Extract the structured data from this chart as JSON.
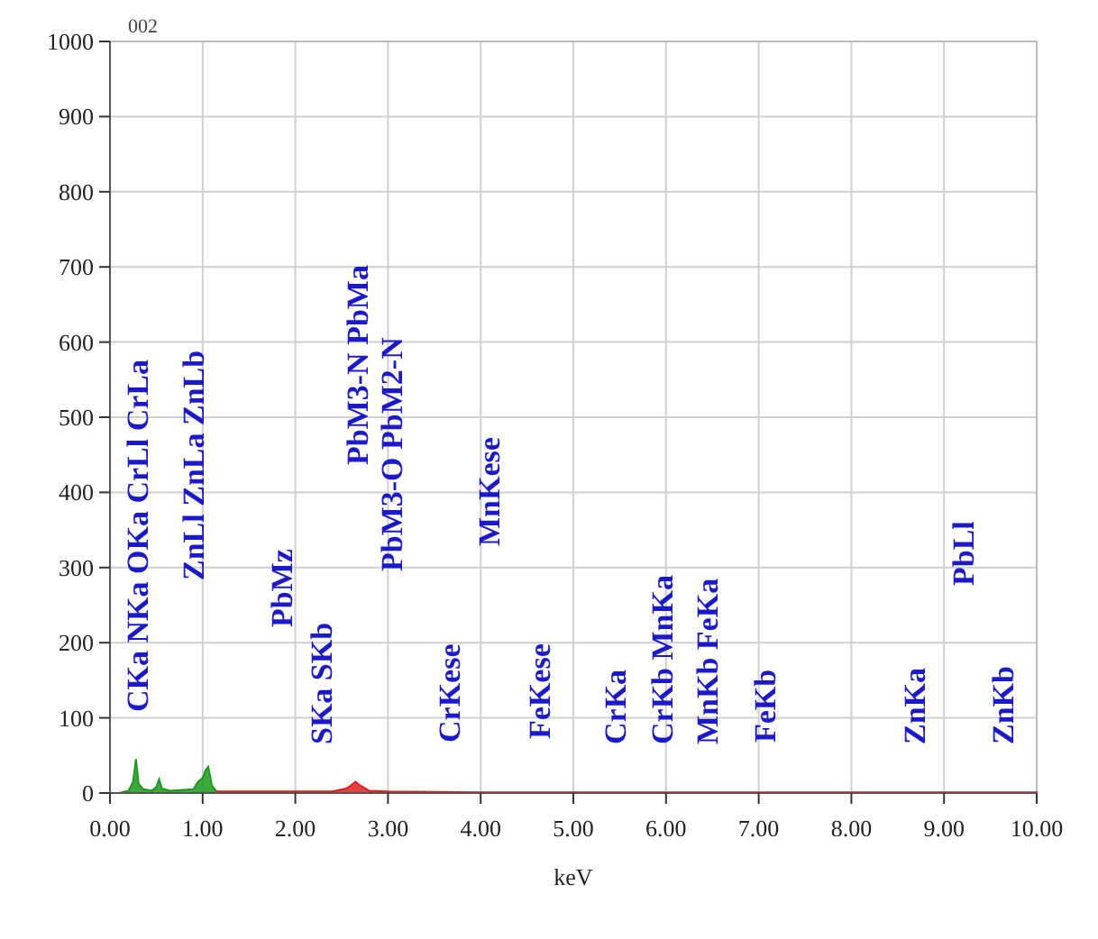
{
  "chart_data": {
    "type": "area",
    "xlabel": "keV",
    "xlim": [
      0,
      10
    ],
    "ylim": [
      0,
      1000
    ],
    "xticks": [
      {
        "value": 0,
        "label": "0.00"
      },
      {
        "value": 1,
        "label": "1.00"
      },
      {
        "value": 2,
        "label": "2.00"
      },
      {
        "value": 3,
        "label": "3.00"
      },
      {
        "value": 4,
        "label": "4.00"
      },
      {
        "value": 5,
        "label": "5.00"
      },
      {
        "value": 6,
        "label": "6.00"
      },
      {
        "value": 7,
        "label": "7.00"
      },
      {
        "value": 8,
        "label": "8.00"
      },
      {
        "value": 9,
        "label": "9.00"
      },
      {
        "value": 10,
        "label": "10.00"
      }
    ],
    "yticks": [
      0,
      100,
      200,
      300,
      400,
      500,
      600,
      700,
      800,
      900,
      1000
    ],
    "grid": true,
    "series": [
      {
        "color": "#1a9a1a",
        "x": [
          0.1,
          0.2,
          0.25,
          0.28,
          0.31,
          0.36,
          0.45,
          0.5,
          0.53,
          0.56,
          0.65,
          0.9,
          0.95,
          1.0,
          1.03,
          1.06,
          1.1,
          1.15
        ],
        "values": [
          0,
          3,
          15,
          45,
          12,
          5,
          3,
          8,
          18,
          6,
          3,
          5,
          15,
          20,
          30,
          35,
          10,
          2
        ]
      },
      {
        "color": "#e02020",
        "x": [
          1.15,
          1.5,
          2.0,
          2.4,
          2.55,
          2.62,
          2.65,
          2.7,
          2.8,
          3.0,
          4,
          5,
          6,
          7,
          8,
          9,
          10
        ],
        "values": [
          2,
          2,
          2,
          2,
          6,
          12,
          15,
          10,
          3,
          2,
          1,
          1,
          1,
          1,
          1,
          1,
          1
        ]
      }
    ],
    "annotations": [
      "002",
      "CKa NKa OKa CrLl CrLa",
      "ZnLl ZnLa ZnLb",
      "PbMz",
      "SKa SKb",
      "PbM3-N PbMa",
      "PbM3-O PbM2-N",
      "CrKese",
      "MnKese",
      "FeKese",
      "CrKa",
      "CrKb MnKa",
      "MnKb FeKa",
      "FeKb",
      "ZnKa",
      "PbLl",
      "ZnKb"
    ]
  }
}
